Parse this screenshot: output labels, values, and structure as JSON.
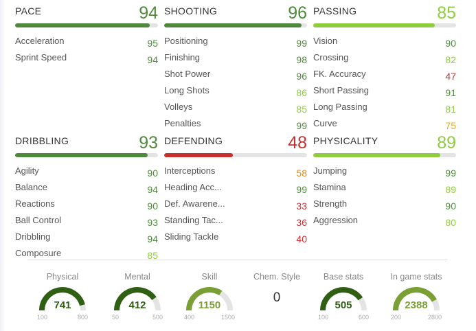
{
  "colors": {
    "elite": "#4f8a3c",
    "great": "#8fcc3f",
    "good": "#e9a820",
    "avg": "#e08a1e",
    "poor": "#c8302f",
    "track": "#e4e4e4",
    "gauge_dark": "#2f5f12",
    "gauge_light": "#7a9f35"
  },
  "categories": [
    {
      "name": "PACE",
      "value": 94,
      "stats": [
        {
          "label": "Acceleration",
          "value": 95
        },
        {
          "label": "Sprint Speed",
          "value": 94
        }
      ]
    },
    {
      "name": "SHOOTING",
      "value": 96,
      "stats": [
        {
          "label": "Positioning",
          "value": 99
        },
        {
          "label": "Finishing",
          "value": 98
        },
        {
          "label": "Shot Power",
          "value": 96
        },
        {
          "label": "Long Shots",
          "value": 86
        },
        {
          "label": "Volleys",
          "value": 85
        },
        {
          "label": "Penalties",
          "value": 99
        }
      ]
    },
    {
      "name": "PASSING",
      "value": 85,
      "stats": [
        {
          "label": "Vision",
          "value": 90
        },
        {
          "label": "Crossing",
          "value": 82
        },
        {
          "label": "FK. Accuracy",
          "value": 47
        },
        {
          "label": "Short Passing",
          "value": 91
        },
        {
          "label": "Long Passing",
          "value": 81
        },
        {
          "label": "Curve",
          "value": 75
        }
      ]
    },
    {
      "name": "DRIBBLING",
      "value": 93,
      "stats": [
        {
          "label": "Agility",
          "value": 90
        },
        {
          "label": "Balance",
          "value": 94
        },
        {
          "label": "Reactions",
          "value": 90
        },
        {
          "label": "Ball Control",
          "value": 93
        },
        {
          "label": "Dribbling",
          "value": 94
        },
        {
          "label": "Composure",
          "value": 85
        }
      ]
    },
    {
      "name": "DEFENDING",
      "value": 48,
      "stats": [
        {
          "label": "Interceptions",
          "value": 58
        },
        {
          "label": "Heading Acc...",
          "value": 99
        },
        {
          "label": "Def. Awarene...",
          "value": 33
        },
        {
          "label": "Standing Tac...",
          "value": 36
        },
        {
          "label": "Sliding Tackle",
          "value": 40
        }
      ]
    },
    {
      "name": "PHYSICALITY",
      "value": 89,
      "stats": [
        {
          "label": "Jumping",
          "value": 99
        },
        {
          "label": "Stamina",
          "value": 89
        },
        {
          "label": "Strength",
          "value": 90
        },
        {
          "label": "Aggression",
          "value": 80
        }
      ]
    }
  ],
  "gauges": [
    {
      "title": "Physical",
      "value": 741,
      "min": 100,
      "max": 800,
      "tone": "dark"
    },
    {
      "title": "Mental",
      "value": 412,
      "min": 50,
      "max": 500,
      "tone": "dark"
    },
    {
      "title": "Skill",
      "value": 1150,
      "min": 400,
      "max": 1500,
      "tone": "light"
    },
    {
      "title": "Chem. Style",
      "value": 0,
      "tone": "none"
    },
    {
      "title": "Base stats",
      "value": 505,
      "min": 100,
      "max": 600,
      "tone": "dark"
    },
    {
      "title": "In game stats",
      "value": 2388,
      "min": 200,
      "max": 2800,
      "tone": "light"
    }
  ]
}
